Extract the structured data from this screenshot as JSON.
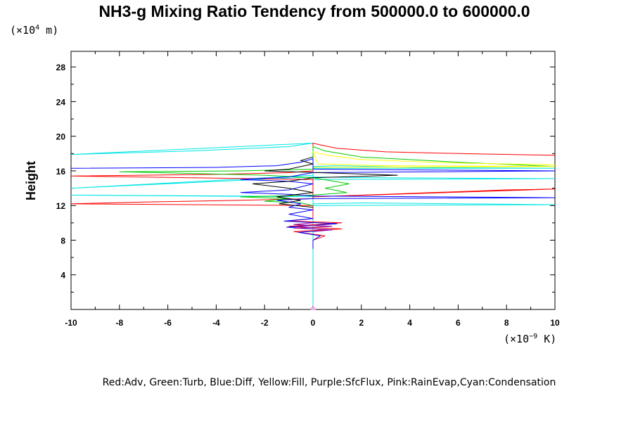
{
  "chart_data": {
    "type": "line",
    "title": "NH3-g Mixing Ratio Tendency from 500000.0 to 600000.0",
    "ylabel": "Height",
    "y_unit": {
      "prefix": "(×10",
      "exp": "4",
      "suffix": " m)"
    },
    "x_unit": {
      "prefix": "(×10",
      "exp": "−9",
      "suffix": " K)"
    },
    "xlim": [
      -10,
      10
    ],
    "ylim": [
      0,
      29.8
    ],
    "x_ticks": [
      -10,
      -8,
      -6,
      -4,
      -2,
      0,
      2,
      4,
      6,
      8,
      10
    ],
    "y_ticks": [
      4,
      8,
      12,
      16,
      20,
      24,
      28
    ],
    "grid": false,
    "legend_text": "Red:Adv, Green:Turb, Blue:Diff, Yellow:Fill, Purple:SfcFlux, Pink:RainEvap,Cyan:Condensation",
    "colors": {
      "Adv": "#ff0000",
      "Turb": "#00cc00",
      "Diff": "#0000ff",
      "Yellow": "#ffff00",
      "SfcFlux": "#990099",
      "RainEvap": "#ff66cc",
      "Condensation": "#00e5e5",
      "Unnamed": "#000000"
    },
    "series": [
      {
        "key": "Condensation",
        "points": [
          [
            0,
            0
          ],
          [
            0,
            8
          ],
          [
            0,
            12
          ],
          [
            0,
            16
          ],
          [
            0,
            18.5
          ],
          [
            0,
            19.2
          ],
          [
            -1,
            18.8
          ],
          [
            -5,
            18.3
          ],
          [
            -10,
            17.9
          ],
          [
            0,
            19.2
          ],
          [
            0,
            16.5
          ],
          [
            1,
            16.6
          ],
          [
            4,
            16.4
          ],
          [
            10,
            16.3
          ],
          [
            0,
            16.3
          ],
          [
            0,
            15.5
          ],
          [
            -2,
            15.2
          ],
          [
            -6,
            14.6
          ],
          [
            -10,
            14
          ],
          [
            0,
            15.3
          ],
          [
            3,
            15.2
          ],
          [
            10,
            15.1
          ],
          [
            0,
            15
          ],
          [
            0,
            13
          ],
          [
            -3,
            13.1
          ],
          [
            -10,
            13.2
          ],
          [
            0,
            13
          ],
          [
            0,
            12.2
          ],
          [
            2,
            12.3
          ],
          [
            6,
            12.2
          ],
          [
            10,
            12.1
          ],
          [
            0,
            12
          ],
          [
            0,
            0
          ]
        ]
      },
      {
        "key": "Adv",
        "points": [
          [
            10,
            17.8
          ],
          [
            6,
            18
          ],
          [
            3,
            18.2
          ],
          [
            1,
            18.6
          ],
          [
            0.3,
            19
          ],
          [
            0,
            19.2
          ],
          [
            0,
            16
          ],
          [
            -1,
            15.8
          ],
          [
            -4,
            15.6
          ],
          [
            -10,
            15.4
          ],
          [
            0,
            15
          ],
          [
            0,
            13
          ],
          [
            3,
            13.3
          ],
          [
            8,
            13.8
          ],
          [
            10,
            13.9
          ],
          [
            0,
            13
          ],
          [
            0,
            12.8
          ],
          [
            -3,
            12.6
          ],
          [
            -7,
            12.4
          ],
          [
            -10,
            12.2
          ],
          [
            0,
            12
          ],
          [
            0,
            10.5
          ],
          [
            -1,
            10.2
          ],
          [
            1.2,
            10
          ],
          [
            -1,
            9.6
          ],
          [
            1.2,
            9.3
          ],
          [
            -0.8,
            9
          ],
          [
            0.5,
            8.5
          ],
          [
            0,
            8
          ]
        ]
      },
      {
        "key": "Turb",
        "points": [
          [
            10,
            16.5
          ],
          [
            6,
            17
          ],
          [
            2,
            17.6
          ],
          [
            0.5,
            18.3
          ],
          [
            0,
            18.8
          ],
          [
            0,
            16.2
          ],
          [
            -3,
            16
          ],
          [
            -8,
            15.9
          ],
          [
            -5,
            15.7
          ],
          [
            -2,
            15.5
          ],
          [
            0,
            15.2
          ],
          [
            1.5,
            14.5
          ],
          [
            0.5,
            14
          ],
          [
            1.4,
            13.5
          ],
          [
            0,
            13.2
          ],
          [
            -3,
            13
          ],
          [
            -1,
            12.8
          ],
          [
            -2,
            12.5
          ],
          [
            -0.5,
            12.3
          ],
          [
            0,
            12
          ]
        ]
      },
      {
        "key": "Yellow",
        "points": [
          [
            10,
            16.7
          ],
          [
            6,
            16.9
          ],
          [
            2,
            17.3
          ],
          [
            0.6,
            17.8
          ],
          [
            0,
            18.2
          ],
          [
            0.2,
            16.8
          ],
          [
            3,
            16.6
          ],
          [
            10,
            16.5
          ],
          [
            0,
            16.4
          ]
        ]
      },
      {
        "key": "Diff",
        "points": [
          [
            -10,
            16.3
          ],
          [
            -4,
            16.4
          ],
          [
            -1.5,
            16.6
          ],
          [
            -0.5,
            17
          ],
          [
            0,
            17.4
          ],
          [
            0,
            16.2
          ],
          [
            5,
            16.1
          ],
          [
            10,
            16
          ],
          [
            0,
            15.8
          ],
          [
            -1,
            15.3
          ],
          [
            -3,
            15
          ],
          [
            -1,
            14.8
          ],
          [
            0,
            14.5
          ],
          [
            -1,
            13.8
          ],
          [
            -3,
            13.5
          ],
          [
            -1,
            13.3
          ],
          [
            0,
            13.1
          ],
          [
            5,
            13
          ],
          [
            10,
            12.9
          ],
          [
            0,
            12.8
          ],
          [
            -1.5,
            12.6
          ],
          [
            -0.5,
            12.2
          ],
          [
            -1,
            11.8
          ],
          [
            0,
            11.5
          ],
          [
            -1,
            11
          ],
          [
            0,
            10.5
          ],
          [
            -1.2,
            10.2
          ],
          [
            1,
            9.9
          ],
          [
            -1.1,
            9.5
          ],
          [
            0.8,
            9.2
          ],
          [
            -0.6,
            8.9
          ],
          [
            0.3,
            8.5
          ],
          [
            0,
            8
          ],
          [
            0,
            7
          ]
        ]
      },
      {
        "key": "Unnamed",
        "points": [
          [
            0,
            17.6
          ],
          [
            -0.5,
            17.2
          ],
          [
            0,
            16.8
          ],
          [
            -1,
            16.2
          ],
          [
            -2,
            16
          ],
          [
            3.5,
            15.5
          ],
          [
            0,
            15.2
          ],
          [
            -1,
            14.8
          ],
          [
            -2.5,
            14.5
          ],
          [
            -1,
            14
          ],
          [
            0,
            13.5
          ],
          [
            -1.5,
            13
          ],
          [
            -0.5,
            12.6
          ],
          [
            -1.4,
            12.2
          ],
          [
            0,
            11.8
          ]
        ]
      },
      {
        "key": "SfcFlux",
        "points": [
          [
            0,
            10
          ],
          [
            -0.8,
            9.8
          ],
          [
            0.8,
            9.6
          ],
          [
            -0.8,
            9.4
          ],
          [
            0.8,
            9.2
          ],
          [
            0,
            9
          ]
        ]
      },
      {
        "key": "RainEvap",
        "points": [
          [
            -0.1,
            0
          ],
          [
            0,
            0.4
          ],
          [
            0.1,
            0
          ],
          [
            -0.1,
            0
          ]
        ]
      }
    ]
  }
}
